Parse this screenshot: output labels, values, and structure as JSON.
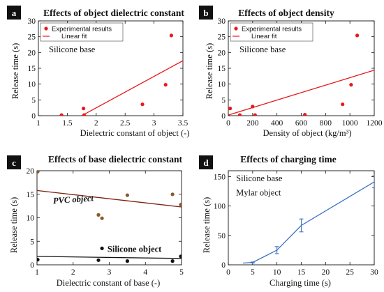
{
  "chart_data": [
    {
      "panel": "a",
      "type": "scatter",
      "title": "Effects of object dielectric constant",
      "xlabel": "Dielectric constant of object (-)",
      "ylabel": "Release time (s)",
      "xlim": [
        1,
        3.5
      ],
      "ylim": [
        0,
        30
      ],
      "xticks": [
        1,
        1.5,
        2,
        2.5,
        3,
        3.5
      ],
      "yticks": [
        0,
        5,
        10,
        15,
        20,
        25,
        30
      ],
      "xtick_labels": [
        "1",
        "1.5",
        "2",
        "2.5",
        "3",
        "3.5"
      ],
      "ytick_labels": [
        "0",
        "5",
        "10",
        "15",
        "20",
        "25",
        "30"
      ],
      "grid": false,
      "legend": {
        "position": "top-left",
        "entries": [
          "Experimental results",
          "Linear fit"
        ]
      },
      "annotations": [
        {
          "text": "Silicone base",
          "x": 1.18,
          "y": 20.5
        }
      ],
      "series": [
        {
          "name": "Experimental results",
          "kind": "scatter",
          "color": "#e8191a",
          "points": [
            [
              1.4,
              0.2
            ],
            [
              1.78,
              2.3
            ],
            [
              1.79,
              0.2
            ],
            [
              2.8,
              3.6
            ],
            [
              3.2,
              9.8
            ],
            [
              3.3,
              25.4
            ]
          ]
        },
        {
          "name": "Linear fit",
          "kind": "line",
          "color": "#e8191a",
          "points": [
            [
              1.75,
              0
            ],
            [
              3.5,
              17.4
            ]
          ]
        }
      ]
    },
    {
      "panel": "b",
      "type": "scatter",
      "title": "Effects of object density",
      "xlabel": "Density of object (kg/m³)",
      "ylabel": "Release time (s)",
      "xlim": [
        0,
        1200
      ],
      "ylim": [
        0,
        30
      ],
      "xticks": [
        0,
        200,
        400,
        600,
        800,
        1000,
        1200
      ],
      "yticks": [
        0,
        5,
        10,
        15,
        20,
        25,
        30
      ],
      "xtick_labels": [
        "0",
        "200",
        "400",
        "600",
        "800",
        "1000",
        "1200"
      ],
      "ytick_labels": [
        "0",
        "5",
        "10",
        "15",
        "20",
        "25",
        "30"
      ],
      "grid": false,
      "legend": {
        "position": "top-left",
        "entries": [
          "Experimental results",
          "Linear fit"
        ]
      },
      "annotations": [
        {
          "text": "Silicone base",
          "x": 90,
          "y": 20.5
        }
      ],
      "series": [
        {
          "name": "Experimental results",
          "kind": "scatter",
          "color": "#e8191a",
          "points": [
            [
              15,
              2.3
            ],
            [
              95,
              0.2
            ],
            [
              200,
              2.9
            ],
            [
              220,
              0.2
            ],
            [
              630,
              0.3
            ],
            [
              940,
              3.6
            ],
            [
              1010,
              9.8
            ],
            [
              1060,
              25.4
            ]
          ]
        },
        {
          "name": "Linear fit",
          "kind": "line",
          "color": "#e8191a",
          "points": [
            [
              0,
              0.2
            ],
            [
              1200,
              14.4
            ]
          ]
        }
      ]
    },
    {
      "panel": "c",
      "type": "scatter",
      "title": "Effects of base dielectric constant",
      "xlabel": "Dielectric constant of base (-)",
      "ylabel": "Release time (s)",
      "xlim": [
        1,
        5
      ],
      "ylim": [
        0,
        20
      ],
      "xticks": [
        1,
        2,
        3,
        4,
        5
      ],
      "yticks": [
        0,
        5,
        10,
        15,
        20
      ],
      "xtick_labels": [
        "1",
        "2",
        "3",
        "4",
        "5"
      ],
      "ytick_labels": [
        "0",
        "5",
        "10",
        "15",
        "20"
      ],
      "grid": false,
      "annotations": [
        {
          "text": "PVC object",
          "x": 1.45,
          "y": 13.0,
          "color": "#8b2a12",
          "style": "bold-italic",
          "rotate": -4
        },
        {
          "text": "Silicone object",
          "x": 2.95,
          "y": 2.75,
          "color": "#111111",
          "style": "bold",
          "rotate": 0
        }
      ],
      "series": [
        {
          "name": "PVC object",
          "kind": "scatter",
          "color": "#8b5a2b",
          "points": [
            [
              1.02,
              19.8
            ],
            [
              2.7,
              10.6
            ],
            [
              2.8,
              9.9
            ],
            [
              3.5,
              14.8
            ],
            [
              4.75,
              15.0
            ],
            [
              4.98,
              12.8
            ]
          ]
        },
        {
          "name": "PVC object fit",
          "kind": "line",
          "color": "#7a2410",
          "points": [
            [
              1,
              15.8
            ],
            [
              5,
              12.3
            ]
          ]
        },
        {
          "name": "Silicone object",
          "kind": "scatter",
          "color": "#111111",
          "points": [
            [
              1.02,
              1.1
            ],
            [
              2.7,
              1.0
            ],
            [
              2.8,
              3.5
            ],
            [
              3.5,
              0.8
            ],
            [
              4.75,
              0.8
            ],
            [
              4.98,
              1.8
            ]
          ]
        },
        {
          "name": "Silicone object fit",
          "kind": "line",
          "color": "#111111",
          "points": [
            [
              1,
              1.8
            ],
            [
              5,
              1.35
            ]
          ]
        }
      ]
    },
    {
      "panel": "d",
      "type": "line",
      "title": "Effects of charging time",
      "xlabel": "Charging time (s)",
      "ylabel": "Release time (s)",
      "xlim": [
        0,
        30
      ],
      "ylim": [
        0,
        160
      ],
      "xticks": [
        0,
        5,
        10,
        15,
        20,
        25,
        30
      ],
      "yticks": [
        0,
        50,
        100,
        150
      ],
      "xtick_labels": [
        "0",
        "5",
        "10",
        "15",
        "20",
        "25",
        "30"
      ],
      "ytick_labels": [
        "0",
        "50",
        "100",
        "150"
      ],
      "grid": false,
      "annotations": [
        {
          "text": "Silicone base",
          "x": 1.6,
          "y": 142
        },
        {
          "text": "Mylar object",
          "x": 1.6,
          "y": 118
        }
      ],
      "series": [
        {
          "name": "Release time",
          "kind": "line-errorbar",
          "color": "#3a6fc4",
          "points": [
            [
              3,
              3
            ],
            [
              5,
              4
            ],
            [
              10,
              25
            ],
            [
              15,
              67
            ],
            [
              30,
              141
            ]
          ],
          "errors": [
            0,
            0.8,
            6,
            11,
            10
          ]
        }
      ]
    }
  ]
}
